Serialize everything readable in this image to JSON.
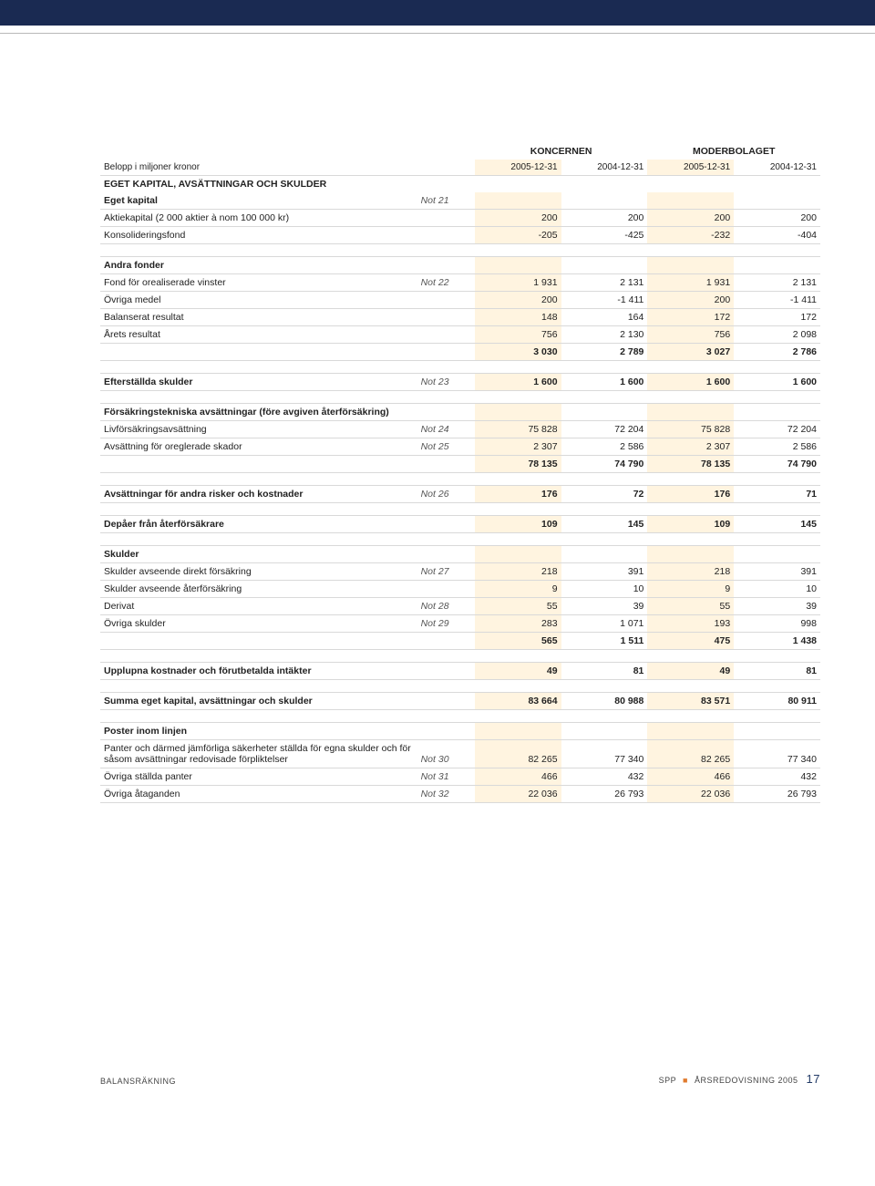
{
  "header": {
    "group1": "KONCERNEN",
    "group2": "MODERBOLAGET",
    "unit_label": "Belopp i miljoner kronor",
    "dates": [
      "2005-12-31",
      "2004-12-31",
      "2005-12-31",
      "2004-12-31"
    ]
  },
  "highlight_color": "#fff4e0",
  "topbar_color": "#1a2a52",
  "rows": [
    {
      "type": "section",
      "label": "EGET KAPITAL, AVSÄTTNINGAR OCH SKULDER"
    },
    {
      "label": "Eget kapital",
      "note": "Not 21",
      "bold": true,
      "vals": [
        "",
        "",
        "",
        ""
      ]
    },
    {
      "label": "Aktiekapital (2 000 aktier à nom 100 000 kr)",
      "vals": [
        "200",
        "200",
        "200",
        "200"
      ]
    },
    {
      "label": "Konsolideringsfond",
      "vals": [
        "-205",
        "-425",
        "-232",
        "-404"
      ]
    },
    {
      "type": "spacer"
    },
    {
      "label": "Andra fonder",
      "bold": true,
      "vals": [
        "",
        "",
        "",
        ""
      ]
    },
    {
      "label": "Fond för orealiserade vinster",
      "note": "Not 22",
      "vals": [
        "1 931",
        "2 131",
        "1 931",
        "2 131"
      ]
    },
    {
      "label": "Övriga medel",
      "vals": [
        "200",
        "-1 411",
        "200",
        "-1 411"
      ]
    },
    {
      "label": "Balanserat resultat",
      "vals": [
        "148",
        "164",
        "172",
        "172"
      ]
    },
    {
      "label": "Årets resultat",
      "vals": [
        "756",
        "2 130",
        "756",
        "2 098"
      ]
    },
    {
      "label": "",
      "bold": true,
      "vals": [
        "3 030",
        "2 789",
        "3 027",
        "2 786"
      ]
    },
    {
      "type": "spacer"
    },
    {
      "label": "Efterställda skulder",
      "note": "Not 23",
      "bold": true,
      "vals": [
        "1 600",
        "1 600",
        "1 600",
        "1 600"
      ]
    },
    {
      "type": "spacer"
    },
    {
      "label": "Försäkringstekniska avsättningar (före avgiven återförsäkring)",
      "bold": true,
      "vals": [
        "",
        "",
        "",
        ""
      ]
    },
    {
      "label": "Livförsäkringsavsättning",
      "note": "Not 24",
      "vals": [
        "75 828",
        "72 204",
        "75 828",
        "72 204"
      ]
    },
    {
      "label": "Avsättning för oreglerade skador",
      "note": "Not 25",
      "vals": [
        "2 307",
        "2 586",
        "2 307",
        "2 586"
      ]
    },
    {
      "label": "",
      "bold": true,
      "vals": [
        "78 135",
        "74 790",
        "78 135",
        "74 790"
      ]
    },
    {
      "type": "spacer"
    },
    {
      "label": "Avsättningar för andra risker och kostnader",
      "note": "Not 26",
      "bold": true,
      "vals": [
        "176",
        "72",
        "176",
        "71"
      ]
    },
    {
      "type": "spacer"
    },
    {
      "label": "Depåer från återförsäkrare",
      "bold": true,
      "vals": [
        "109",
        "145",
        "109",
        "145"
      ]
    },
    {
      "type": "spacer"
    },
    {
      "label": "Skulder",
      "bold": true,
      "vals": [
        "",
        "",
        "",
        ""
      ]
    },
    {
      "label": "Skulder avseende direkt försäkring",
      "note": "Not 27",
      "vals": [
        "218",
        "391",
        "218",
        "391"
      ]
    },
    {
      "label": "Skulder avseende återförsäkring",
      "vals": [
        "9",
        "10",
        "9",
        "10"
      ]
    },
    {
      "label": "Derivat",
      "note": "Not 28",
      "vals": [
        "55",
        "39",
        "55",
        "39"
      ]
    },
    {
      "label": "Övriga skulder",
      "note": "Not 29",
      "vals": [
        "283",
        "1 071",
        "193",
        "998"
      ]
    },
    {
      "label": "",
      "bold": true,
      "vals": [
        "565",
        "1 511",
        "475",
        "1 438"
      ]
    },
    {
      "type": "spacer"
    },
    {
      "label": "Upplupna kostnader och förutbetalda intäkter",
      "bold": true,
      "vals": [
        "49",
        "81",
        "49",
        "81"
      ]
    },
    {
      "type": "spacer"
    },
    {
      "type": "sum",
      "label": "Summa eget kapital, avsättningar och skulder",
      "vals": [
        "83 664",
        "80 988",
        "83 571",
        "80 911"
      ]
    },
    {
      "type": "spacer"
    },
    {
      "label": "Poster inom linjen",
      "bold": true,
      "vals": [
        "",
        "",
        "",
        ""
      ]
    },
    {
      "label": "Panter och därmed jämförliga säkerheter ställda för egna skulder och för såsom avsättningar redovisade förpliktelser",
      "note": "Not 30",
      "vals": [
        "82 265",
        "77 340",
        "82 265",
        "77 340"
      ]
    },
    {
      "label": "Övriga ställda panter",
      "note": "Not 31",
      "vals": [
        "466",
        "432",
        "466",
        "432"
      ]
    },
    {
      "label": "Övriga åtaganden",
      "note": "Not 32",
      "vals": [
        "22 036",
        "26 793",
        "22 036",
        "26 793"
      ]
    }
  ],
  "footer": {
    "left": "BALANSRÄKNING",
    "right_brand": "SPP",
    "right_doc": "ÅRSREDOVISNING 2005",
    "page": "17"
  }
}
